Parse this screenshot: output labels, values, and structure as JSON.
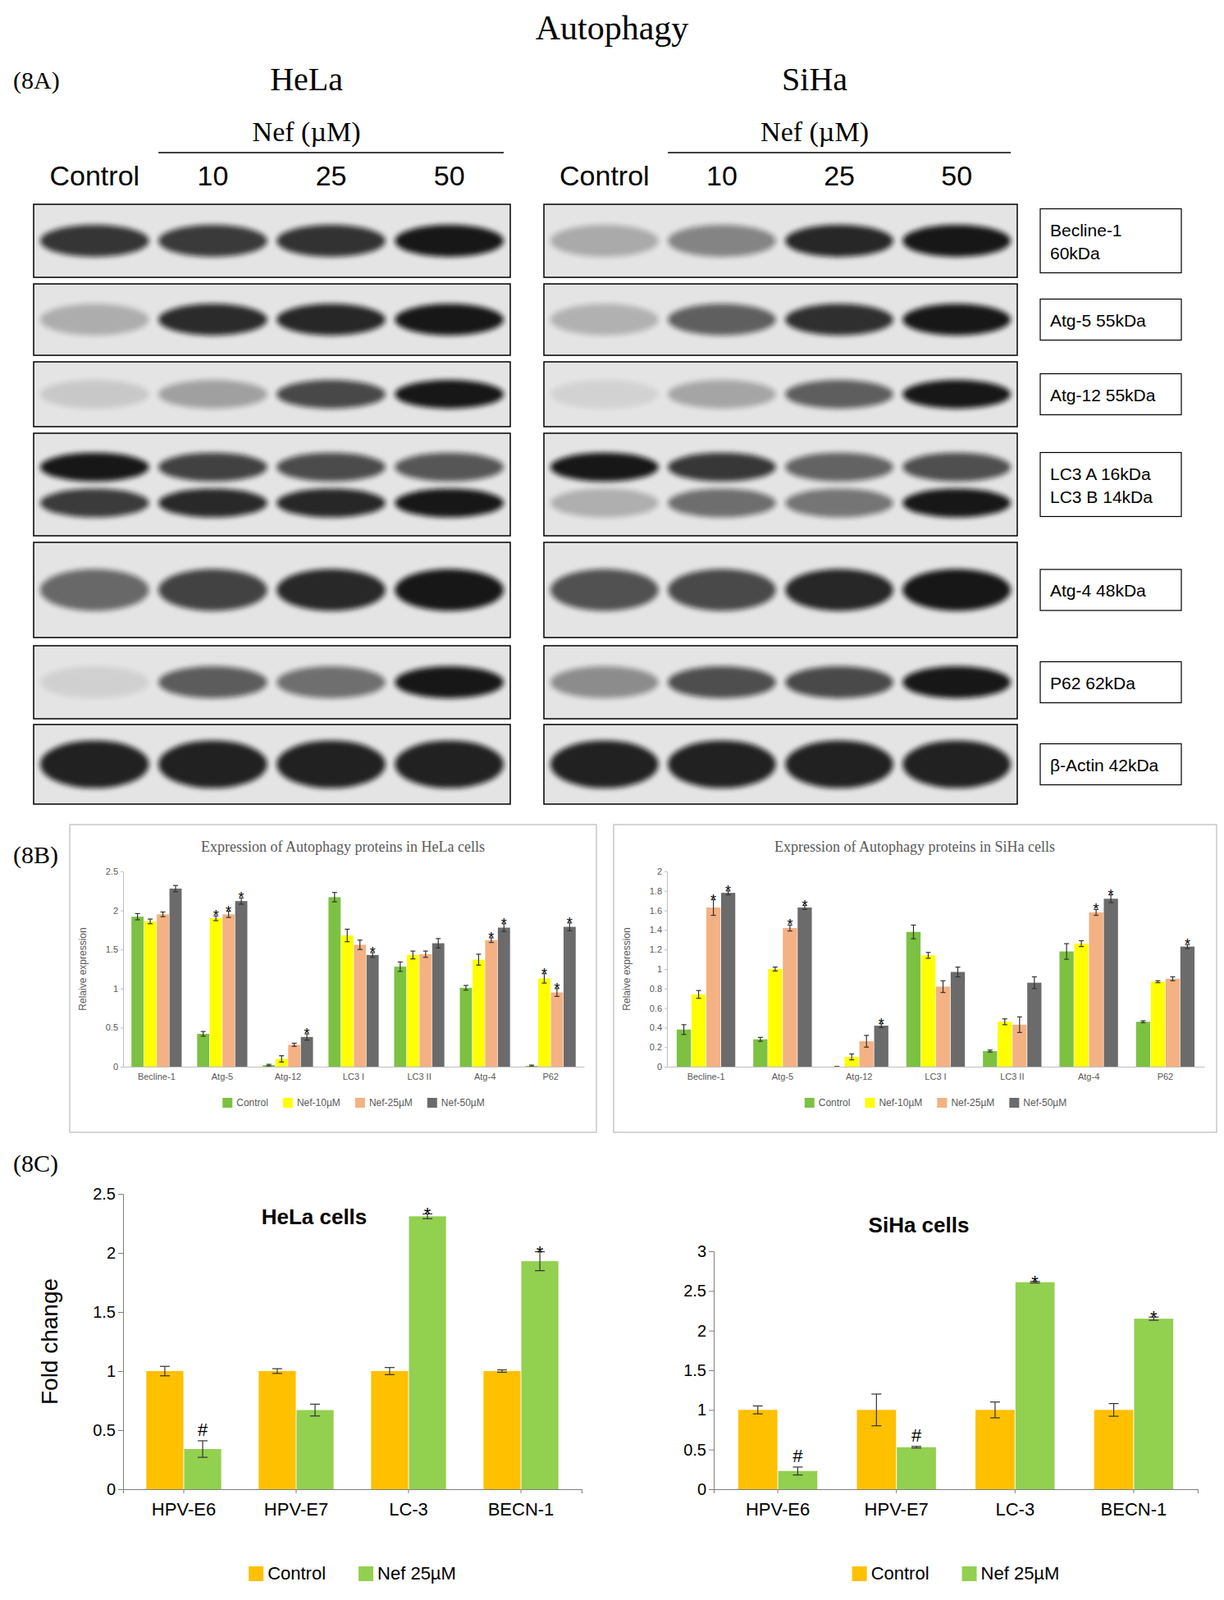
{
  "figure": {
    "title": "Autophagy",
    "panel_labels": [
      "(8A)",
      "(8B)",
      "(8C)"
    ]
  },
  "blots": {
    "treatment_label": "Nef (µM)",
    "lanes": [
      "Control",
      "10",
      "25",
      "50"
    ],
    "cell_lines": [
      "HeLa",
      "SiHa"
    ],
    "rows": [
      [
        "Becline-1",
        "60kDa"
      ],
      [
        "Atg-5 55kDa"
      ],
      [
        "Atg-12 55kDa"
      ],
      [
        "LC3 A 16kDa",
        "LC3 B 14kDa"
      ],
      [
        "Atg-4 48kDa"
      ],
      [
        "P62 62kDa"
      ],
      [
        "β-Actin 42kDa"
      ]
    ]
  },
  "chart_data": [
    {
      "type": "bar",
      "title": "Expression of Autophagy proteins in HeLa cells",
      "y_label": "Relaive expression",
      "categories": [
        "Becline-1",
        "Atg-5",
        "Atg-12",
        "LC3 I",
        "LC3 II",
        "Atg-4",
        "P62"
      ],
      "series": [
        {
          "name": "Control",
          "color": "#7cc142",
          "values": [
            1.92,
            0.42,
            0.02,
            2.17,
            1.28,
            1.01,
            0.01
          ],
          "errors": [
            0.04,
            0.03,
            0.01,
            0.06,
            0.06,
            0.03,
            0.01
          ],
          "significance": [
            null,
            null,
            null,
            null,
            null,
            null,
            null
          ]
        },
        {
          "name": "Nef-10µM",
          "color": "#ffff00",
          "values": [
            1.86,
            1.9,
            0.1,
            1.68,
            1.43,
            1.37,
            1.13
          ],
          "errors": [
            0.03,
            0.03,
            0.04,
            0.08,
            0.05,
            0.07,
            0.06
          ],
          "significance": [
            null,
            "*",
            null,
            null,
            null,
            null,
            "*"
          ]
        },
        {
          "name": "Nef-25µM",
          "color": "#f4b183",
          "values": [
            1.95,
            1.95,
            0.28,
            1.56,
            1.44,
            1.62,
            0.95
          ],
          "errors": [
            0.03,
            0.04,
            0.02,
            0.06,
            0.04,
            0.03,
            0.05
          ],
          "significance": [
            null,
            "*",
            null,
            null,
            null,
            "*",
            "*"
          ]
        },
        {
          "name": "Nef-50µM",
          "color": "#6b6b6b",
          "values": [
            2.28,
            2.12,
            0.38,
            1.43,
            1.58,
            1.78,
            1.79
          ],
          "errors": [
            0.04,
            0.04,
            0.04,
            0.03,
            0.06,
            0.05,
            0.05
          ],
          "significance": [
            null,
            "*",
            "*",
            "*",
            null,
            "*",
            "*"
          ]
        }
      ],
      "ylim": [
        0,
        2.5
      ],
      "yticks": [
        0,
        0.5,
        1,
        1.5,
        2,
        2.5
      ],
      "legend": "bottom"
    },
    {
      "type": "bar",
      "title": "Expression of Autophagy proteins in SiHa cells",
      "y_label": "Relaive expression",
      "categories": [
        "Becline-1",
        "Atg-5",
        "Atg-12",
        "LC3 I",
        "LC3 II",
        "Atg-4",
        "P62"
      ],
      "series": [
        {
          "name": "Control",
          "color": "#7cc142",
          "values": [
            0.38,
            0.28,
            0,
            1.38,
            0.16,
            1.18,
            0.46
          ],
          "errors": [
            0.05,
            0.02,
            0,
            0.07,
            0.01,
            0.08,
            0.01
          ],
          "significance": [
            null,
            null,
            null,
            null,
            null,
            null,
            null
          ]
        },
        {
          "name": "Nef-10µM",
          "color": "#ffff00",
          "values": [
            0.74,
            1.0,
            0.1,
            1.14,
            0.46,
            1.26,
            0.87
          ],
          "errors": [
            0.04,
            0.02,
            0.03,
            0.03,
            0.03,
            0.03,
            0.01
          ],
          "significance": [
            null,
            null,
            null,
            null,
            null,
            null,
            null
          ]
        },
        {
          "name": "Nef-25µM",
          "color": "#f4b183",
          "values": [
            1.63,
            1.42,
            0.26,
            0.82,
            0.43,
            1.58,
            0.9
          ],
          "errors": [
            0.08,
            0.03,
            0.06,
            0.06,
            0.08,
            0.03,
            0.02
          ],
          "significance": [
            "*",
            "*",
            null,
            null,
            null,
            "*",
            null
          ]
        },
        {
          "name": "Nef-50µM",
          "color": "#6b6b6b",
          "values": [
            1.78,
            1.63,
            0.42,
            0.97,
            0.86,
            1.72,
            1.23
          ],
          "errors": [
            0.02,
            0.02,
            0.02,
            0.05,
            0.06,
            0.04,
            0.02
          ],
          "significance": [
            "*",
            "*",
            "*",
            null,
            null,
            "*",
            "*"
          ]
        }
      ],
      "ylim": [
        0,
        2
      ],
      "yticks": [
        0,
        0.2,
        0.4,
        0.6,
        0.8,
        1,
        1.2,
        1.4,
        1.6,
        1.8,
        2
      ],
      "legend": "bottom"
    },
    {
      "type": "bar",
      "title": "HeLa cells",
      "y_label": "Fold change",
      "categories": [
        "HPV-E6",
        "HPV-E7",
        "LC-3",
        "BECN-1"
      ],
      "series": [
        {
          "name": "Control",
          "color": "#ffc000",
          "values": [
            1,
            1,
            1,
            1
          ],
          "errors": [
            0.04,
            0.02,
            0.03,
            0.01
          ],
          "significance": [
            null,
            null,
            null,
            null
          ]
        },
        {
          "name": "Nef 25µM",
          "color": "#92d050",
          "values": [
            0.34,
            0.67,
            2.31,
            1.93
          ],
          "errors": [
            0.07,
            0.05,
            0.02,
            0.08
          ],
          "significance": [
            "#",
            null,
            "*",
            "*"
          ]
        }
      ],
      "ylim": [
        0,
        2.5
      ],
      "yticks": [
        0,
        0.5,
        1,
        1.5,
        2,
        2.5
      ],
      "legend": "bottom"
    },
    {
      "type": "bar",
      "title": "SiHa cells",
      "categories": [
        "HPV-E6",
        "HPV-E7",
        "LC-3",
        "BECN-1"
      ],
      "series": [
        {
          "name": "Control",
          "color": "#ffc000",
          "values": [
            1,
            1,
            1,
            1
          ],
          "errors": [
            0.05,
            0.2,
            0.1,
            0.08
          ],
          "significance": [
            null,
            null,
            null,
            null
          ]
        },
        {
          "name": "Nef 25µM",
          "color": "#92d050",
          "values": [
            0.23,
            0.53,
            2.61,
            2.15
          ],
          "errors": [
            0.05,
            0.01,
            0.01,
            0.02
          ],
          "significance": [
            "#",
            "#",
            "*",
            "*"
          ]
        }
      ],
      "ylim": [
        0,
        3
      ],
      "yticks": [
        0,
        0.5,
        1,
        1.5,
        2,
        2.5,
        3
      ],
      "legend": "bottom"
    }
  ]
}
